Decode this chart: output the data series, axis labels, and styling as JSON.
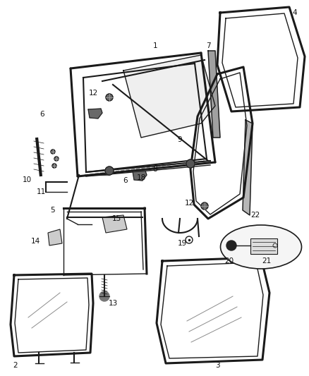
{
  "background_color": "#ffffff",
  "line_color": "#1a1a1a",
  "label_fontsize": 7.5,
  "label_color": "#111111",
  "fig_w": 4.38,
  "fig_h": 5.33,
  "dpi": 100
}
